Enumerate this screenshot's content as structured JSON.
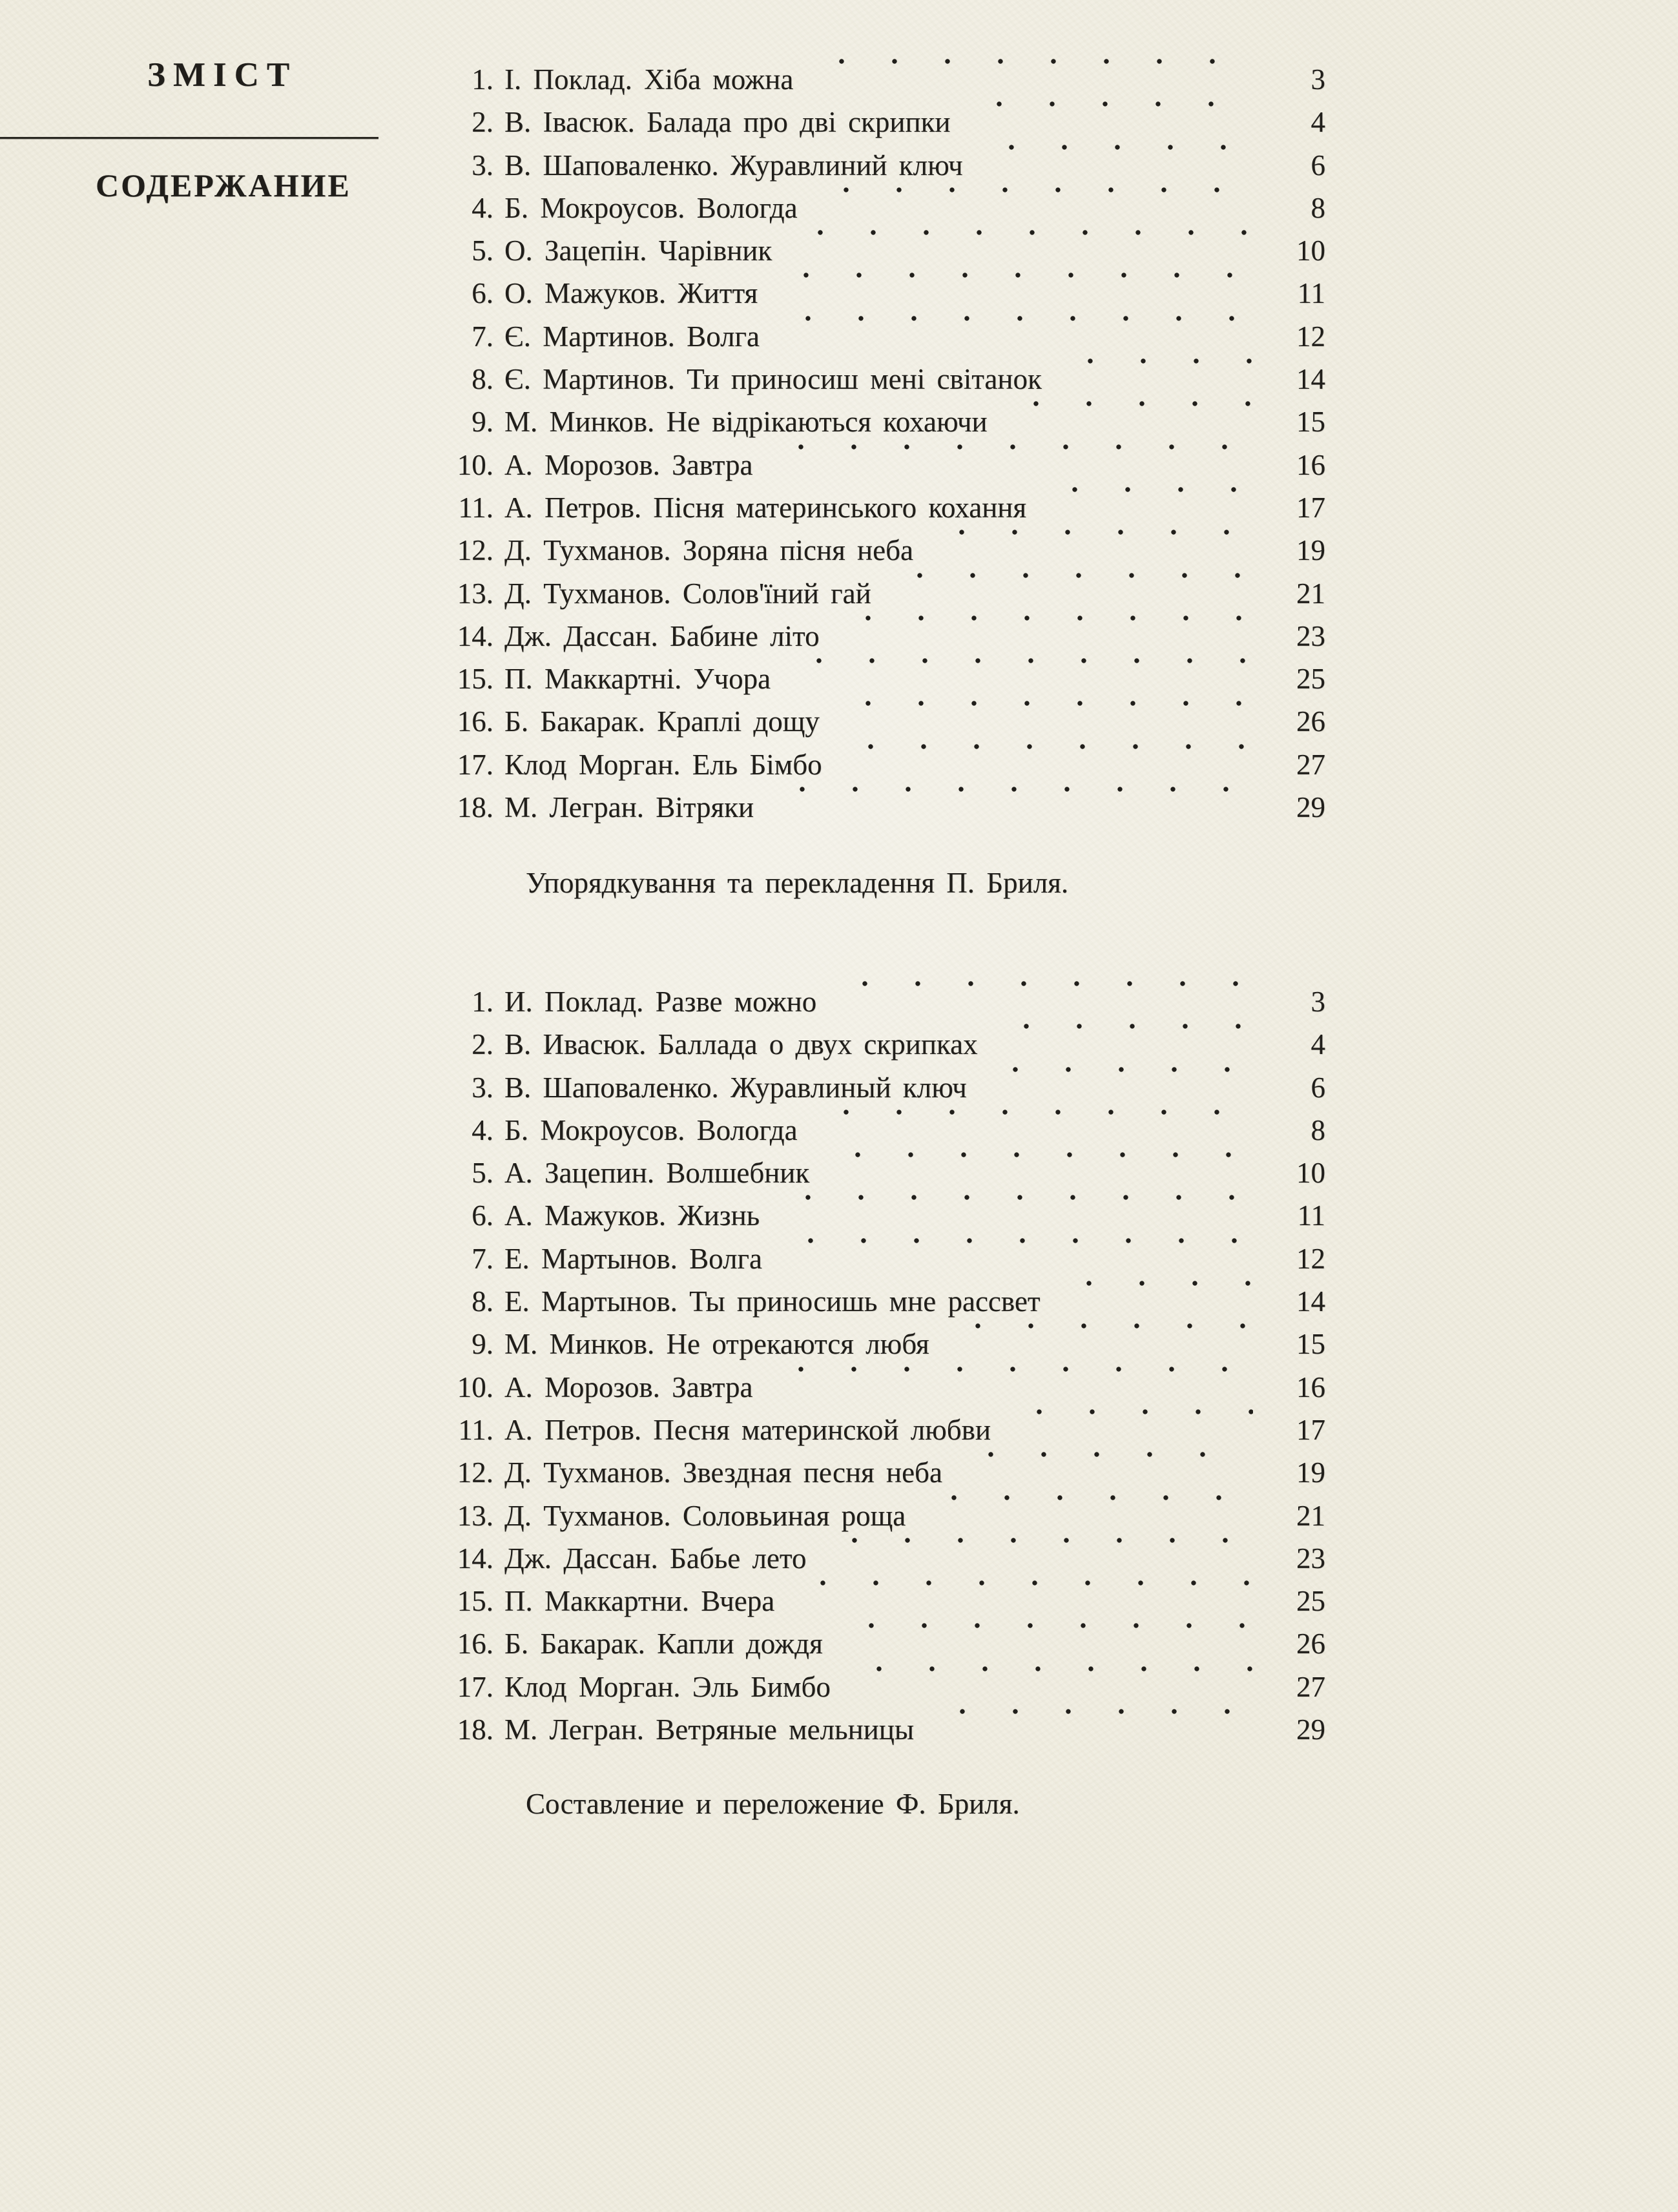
{
  "headings": {
    "ukrainian": "ЗМІСТ",
    "russian": "СОДЕРЖАНИЕ"
  },
  "colors": {
    "paper": "#f0ede0",
    "ink": "#201e1a"
  },
  "toc_ukrainian": {
    "attribution": "Упорядкування та перекладення П. Бриля.",
    "entries": [
      {
        "num": "1.",
        "title": "І. Поклад. Хіба можна",
        "page": "3"
      },
      {
        "num": "2.",
        "title": "В. Івасюк. Балада про дві скрипки",
        "page": "4"
      },
      {
        "num": "3.",
        "title": "В. Шаповаленко. Журавлиний ключ",
        "page": "6"
      },
      {
        "num": "4.",
        "title": "Б. Мокроусов. Вологда",
        "page": "8"
      },
      {
        "num": "5.",
        "title": "О. Зацепін. Чарівник",
        "page": "10"
      },
      {
        "num": "6.",
        "title": "О. Мажуков. Життя",
        "page": "11"
      },
      {
        "num": "7.",
        "title": "Є. Мартинов. Волга",
        "page": "12"
      },
      {
        "num": "8.",
        "title": "Є. Мартинов. Ти приносиш мені світанок",
        "page": "14"
      },
      {
        "num": "9.",
        "title": "М. Минков. Не відрікаються кохаючи",
        "page": "15"
      },
      {
        "num": "10.",
        "title": "А. Морозов. Завтра",
        "page": "16"
      },
      {
        "num": "11.",
        "title": "А. Петров. Пісня материнського кохання",
        "page": "17"
      },
      {
        "num": "12.",
        "title": "Д. Тухманов. Зоряна пісня неба",
        "page": "19"
      },
      {
        "num": "13.",
        "title": "Д. Тухманов. Солов'їний гай",
        "page": "21"
      },
      {
        "num": "14.",
        "title": "Дж. Дассан. Бабине літо",
        "page": "23"
      },
      {
        "num": "15.",
        "title": "П. Маккартні. Учора",
        "page": "25"
      },
      {
        "num": "16.",
        "title": "Б. Бакарак. Краплі дощу",
        "page": "26"
      },
      {
        "num": "17.",
        "title": "Клод Морган. Ель Бімбо",
        "page": "27"
      },
      {
        "num": "18.",
        "title": "М. Легран. Вітряки",
        "page": "29"
      }
    ]
  },
  "toc_russian": {
    "attribution": "Составление и переложение Ф. Бриля.",
    "entries": [
      {
        "num": "1.",
        "title": "И. Поклад. Разве можно",
        "page": "3"
      },
      {
        "num": "2.",
        "title": "В. Ивасюк. Баллада о двух скрипках",
        "page": "4"
      },
      {
        "num": "3.",
        "title": "В. Шаповаленко. Журавлиный ключ",
        "page": "6"
      },
      {
        "num": "4.",
        "title": "Б. Мокроусов. Вологда",
        "page": "8"
      },
      {
        "num": "5.",
        "title": "А. Зацепин. Волшебник",
        "page": "10"
      },
      {
        "num": "6.",
        "title": "А. Мажуков. Жизнь",
        "page": "11"
      },
      {
        "num": "7.",
        "title": "Е. Мартынов. Волга",
        "page": "12"
      },
      {
        "num": "8.",
        "title": "Е. Мартынов. Ты приносишь мне рассвет",
        "page": "14"
      },
      {
        "num": "9.",
        "title": "М. Минков. Не отрекаются любя",
        "page": "15"
      },
      {
        "num": "10.",
        "title": "А. Морозов. Завтра",
        "page": "16"
      },
      {
        "num": "11.",
        "title": "А. Петров. Песня материнской любви",
        "page": "17"
      },
      {
        "num": "12.",
        "title": "Д. Тухманов. Звездная песня неба",
        "page": "19"
      },
      {
        "num": "13.",
        "title": "Д. Тухманов. Соловьиная роща",
        "page": "21"
      },
      {
        "num": "14.",
        "title": "Дж. Дассан. Бабье лето",
        "page": "23"
      },
      {
        "num": "15.",
        "title": "П. Маккартни. Вчера",
        "page": "25"
      },
      {
        "num": "16.",
        "title": "Б. Бакарак. Капли дождя",
        "page": "26"
      },
      {
        "num": "17.",
        "title": "Клод Морган. Эль Бимбо",
        "page": "27"
      },
      {
        "num": "18.",
        "title": "М. Легран. Ветряные мельницы",
        "page": "29"
      }
    ]
  }
}
